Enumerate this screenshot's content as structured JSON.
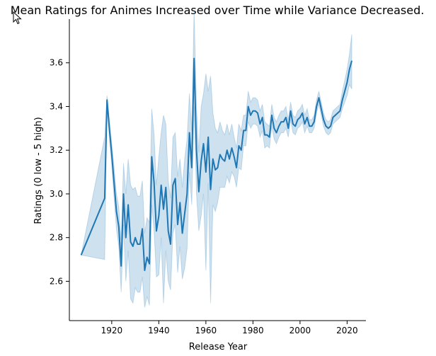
{
  "chart_data": {
    "type": "line",
    "title": "Mean Ratings for Animes Increased over Time while Variance Decreased.",
    "xlabel": "Release Year",
    "ylabel": "Ratings (0 low - 5 high)",
    "xlim": [
      1902,
      2028
    ],
    "ylim": [
      2.42,
      3.8
    ],
    "xticks": [
      1920,
      1940,
      1960,
      1980,
      2000,
      2020
    ],
    "yticks": [
      2.6,
      2.8,
      3.0,
      3.2,
      3.4,
      3.6
    ],
    "ytick_labels": [
      "2.6",
      "2.8",
      "3.0",
      "3.2",
      "3.4",
      "3.6"
    ],
    "grid": false,
    "line_color": "#1f77b4",
    "band_color": "#1f77b4",
    "series": [
      {
        "x": [
          1907,
          1917,
          1918,
          1919,
          1920,
          1921,
          1922,
          1923,
          1924,
          1925,
          1926,
          1927,
          1928,
          1929,
          1930,
          1931,
          1932,
          1933,
          1934,
          1935,
          1936,
          1937,
          1938,
          1939,
          1940,
          1941,
          1942,
          1943,
          1944,
          1945,
          1946,
          1947,
          1948,
          1949,
          1950,
          1951,
          1952,
          1953,
          1954,
          1955,
          1956,
          1957,
          1958,
          1959,
          1960,
          1961,
          1962,
          1963,
          1964,
          1965,
          1966,
          1967,
          1968,
          1969,
          1970,
          1971,
          1972,
          1973,
          1974,
          1975,
          1976,
          1977,
          1978,
          1979,
          1980,
          1981,
          1982,
          1983,
          1984,
          1985,
          1986,
          1987,
          1988,
          1989,
          1990,
          1991,
          1992,
          1993,
          1994,
          1995,
          1996,
          1997,
          1998,
          1999,
          2000,
          2001,
          2002,
          2003,
          2004,
          2005,
          2006,
          2007,
          2008,
          2009,
          2010,
          2011,
          2012,
          2013,
          2014,
          2015,
          2016,
          2017,
          2018,
          2019,
          2020,
          2021,
          2022
        ],
        "y": [
          2.72,
          2.98,
          3.43,
          3.3,
          3.18,
          3.05,
          2.92,
          2.85,
          2.67,
          3.0,
          2.8,
          2.95,
          2.78,
          2.76,
          2.8,
          2.77,
          2.77,
          2.84,
          2.65,
          2.71,
          2.68,
          3.17,
          3.05,
          2.83,
          2.9,
          3.04,
          2.93,
          3.03,
          2.83,
          2.77,
          3.04,
          3.07,
          2.86,
          2.96,
          2.82,
          2.91,
          3.0,
          3.28,
          3.12,
          3.62,
          3.2,
          3.01,
          3.15,
          3.23,
          3.1,
          3.26,
          3.02,
          3.16,
          3.11,
          3.12,
          3.18,
          3.16,
          3.15,
          3.2,
          3.16,
          3.21,
          3.17,
          3.12,
          3.22,
          3.2,
          3.29,
          3.29,
          3.4,
          3.36,
          3.38,
          3.38,
          3.37,
          3.32,
          3.35,
          3.27,
          3.27,
          3.26,
          3.36,
          3.3,
          3.28,
          3.31,
          3.33,
          3.33,
          3.35,
          3.3,
          3.38,
          3.32,
          3.31,
          3.34,
          3.35,
          3.37,
          3.32,
          3.35,
          3.31,
          3.31,
          3.33,
          3.4,
          3.44,
          3.39,
          3.34,
          3.31,
          3.3,
          3.31,
          3.35,
          3.36,
          3.37,
          3.38,
          3.43,
          3.47,
          3.51,
          3.57,
          3.61
        ],
        "ci_low": [
          2.72,
          2.7,
          3.4,
          3.26,
          3.13,
          2.98,
          2.84,
          2.76,
          2.55,
          2.86,
          2.6,
          2.74,
          2.52,
          2.5,
          2.57,
          2.55,
          2.55,
          2.62,
          2.48,
          2.53,
          2.49,
          2.95,
          2.83,
          2.62,
          2.63,
          2.8,
          2.5,
          2.74,
          2.6,
          2.56,
          2.82,
          2.86,
          2.64,
          2.76,
          2.61,
          2.66,
          2.75,
          3.1,
          2.95,
          3.4,
          3.0,
          2.83,
          2.9,
          3.0,
          2.65,
          3.05,
          2.5,
          2.95,
          2.92,
          2.96,
          3.03,
          3.03,
          3.03,
          3.08,
          3.05,
          3.1,
          3.08,
          3.03,
          3.12,
          3.11,
          3.22,
          3.22,
          3.33,
          3.3,
          3.32,
          3.32,
          3.31,
          3.26,
          3.29,
          3.21,
          3.22,
          3.21,
          3.31,
          3.25,
          3.23,
          3.26,
          3.28,
          3.28,
          3.3,
          3.26,
          3.34,
          3.28,
          3.27,
          3.3,
          3.31,
          3.33,
          3.28,
          3.31,
          3.28,
          3.28,
          3.3,
          3.37,
          3.41,
          3.36,
          3.31,
          3.28,
          3.27,
          3.28,
          3.32,
          3.33,
          3.34,
          3.35,
          3.39,
          3.42,
          3.45,
          3.5,
          3.48
        ],
        "ci_high": [
          2.72,
          3.26,
          3.45,
          3.34,
          3.23,
          3.12,
          3.0,
          2.94,
          2.79,
          3.14,
          3.0,
          3.16,
          3.04,
          3.02,
          3.03,
          2.99,
          2.99,
          3.06,
          2.82,
          2.89,
          2.87,
          3.39,
          3.27,
          3.04,
          3.17,
          3.28,
          3.36,
          3.32,
          3.06,
          2.98,
          3.26,
          3.28,
          3.08,
          3.16,
          3.03,
          3.16,
          3.25,
          3.46,
          3.29,
          3.84,
          3.4,
          3.19,
          3.4,
          3.46,
          3.55,
          3.47,
          3.54,
          3.37,
          3.3,
          3.28,
          3.33,
          3.29,
          3.27,
          3.32,
          3.27,
          3.32,
          3.26,
          3.21,
          3.32,
          3.29,
          3.36,
          3.36,
          3.47,
          3.42,
          3.44,
          3.44,
          3.43,
          3.38,
          3.41,
          3.33,
          3.32,
          3.31,
          3.41,
          3.35,
          3.33,
          3.36,
          3.38,
          3.38,
          3.4,
          3.34,
          3.42,
          3.36,
          3.35,
          3.38,
          3.39,
          3.41,
          3.36,
          3.39,
          3.34,
          3.34,
          3.36,
          3.43,
          3.47,
          3.42,
          3.37,
          3.34,
          3.33,
          3.34,
          3.38,
          3.39,
          3.4,
          3.41,
          3.47,
          3.52,
          3.57,
          3.64,
          3.73
        ]
      }
    ]
  }
}
